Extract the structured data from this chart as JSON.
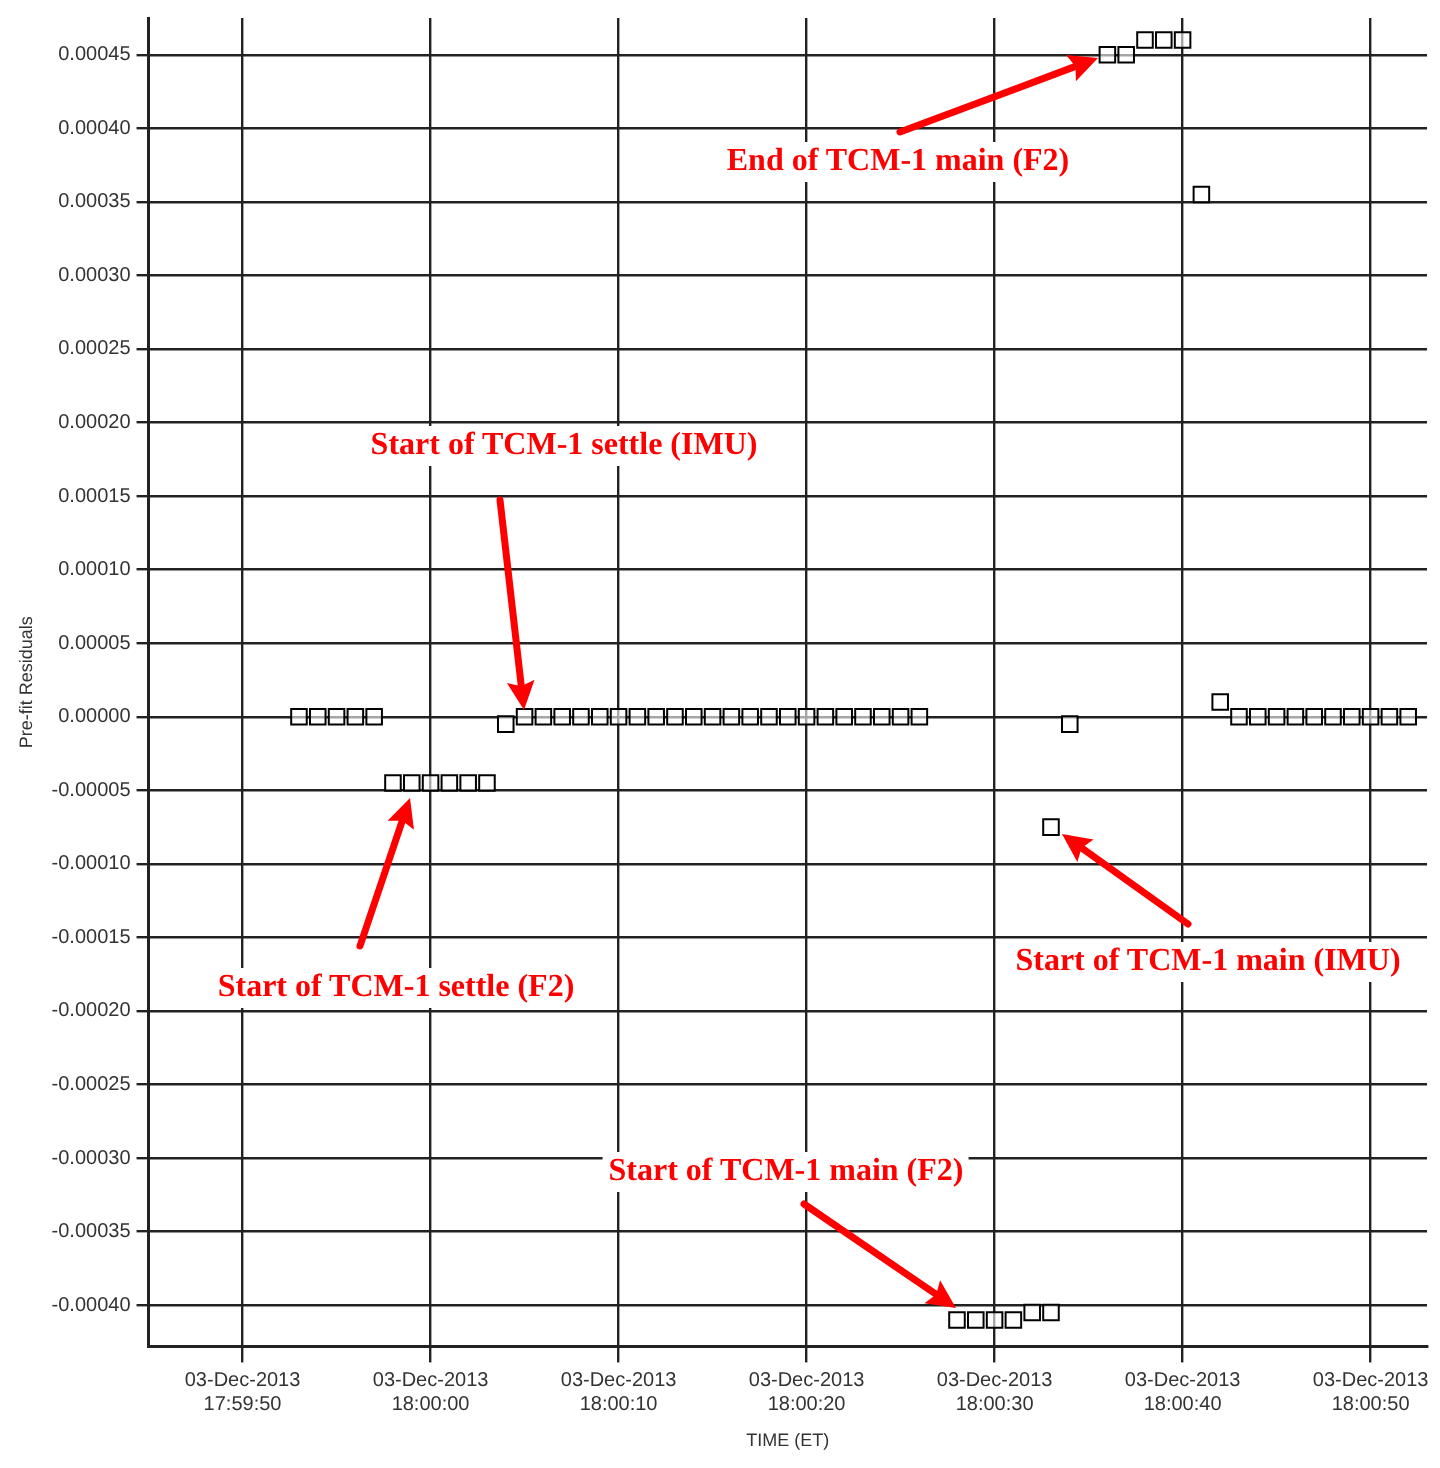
{
  "chart_data": {
    "type": "scatter",
    "xlabel": "TIME (ET)",
    "ylabel": "Pre-fit Residuals",
    "x": [
      "2013-12-03T17:59:53",
      "2013-12-03T17:59:54",
      "2013-12-03T17:59:55",
      "2013-12-03T17:59:56",
      "2013-12-03T17:59:57",
      "2013-12-03T17:59:58",
      "2013-12-03T17:59:59",
      "2013-12-03T18:00:00",
      "2013-12-03T18:00:01",
      "2013-12-03T18:00:02",
      "2013-12-03T18:00:03",
      "2013-12-03T18:00:04",
      "2013-12-03T18:00:05",
      "2013-12-03T18:00:06",
      "2013-12-03T18:00:07",
      "2013-12-03T18:00:08",
      "2013-12-03T18:00:09",
      "2013-12-03T18:00:10",
      "2013-12-03T18:00:11",
      "2013-12-03T18:00:12",
      "2013-12-03T18:00:13",
      "2013-12-03T18:00:14",
      "2013-12-03T18:00:15",
      "2013-12-03T18:00:16",
      "2013-12-03T18:00:17",
      "2013-12-03T18:00:18",
      "2013-12-03T18:00:19",
      "2013-12-03T18:00:20",
      "2013-12-03T18:00:21",
      "2013-12-03T18:00:22",
      "2013-12-03T18:00:23",
      "2013-12-03T18:00:24",
      "2013-12-03T18:00:25",
      "2013-12-03T18:00:26",
      "2013-12-03T18:00:28",
      "2013-12-03T18:00:29",
      "2013-12-03T18:00:30",
      "2013-12-03T18:00:31",
      "2013-12-03T18:00:32",
      "2013-12-03T18:00:33",
      "2013-12-03T18:00:33",
      "2013-12-03T18:00:34",
      "2013-12-03T18:00:36",
      "2013-12-03T18:00:37",
      "2013-12-03T18:00:38",
      "2013-12-03T18:00:39",
      "2013-12-03T18:00:40",
      "2013-12-03T18:00:41",
      "2013-12-03T18:00:42",
      "2013-12-03T18:00:43",
      "2013-12-03T18:00:44",
      "2013-12-03T18:00:45",
      "2013-12-03T18:00:46",
      "2013-12-03T18:00:47",
      "2013-12-03T18:00:48",
      "2013-12-03T18:00:49",
      "2013-12-03T18:00:50",
      "2013-12-03T18:00:51",
      "2013-12-03T18:00:52"
    ],
    "series": [
      {
        "color": "#000000",
        "values": [
          0,
          0,
          0,
          0,
          0,
          -4.5e-05,
          -4.5e-05,
          -4.5e-05,
          -4.5e-05,
          -4.5e-05,
          -4.5e-05,
          -5e-06,
          0,
          0,
          0,
          0,
          0,
          0,
          0,
          0,
          0,
          0,
          0,
          0,
          0,
          0,
          0,
          0,
          0,
          0,
          0,
          0,
          0,
          0,
          -0.00041,
          -0.00041,
          -0.00041,
          -0.00041,
          -0.000405,
          -0.000405,
          -7.5e-05,
          -5e-06,
          0.00045,
          0.00045,
          0.00046,
          0.00046,
          0.00046,
          0.000355,
          1e-05,
          0,
          0,
          0,
          0,
          0,
          0,
          0,
          0,
          0,
          0
        ]
      }
    ],
    "marker": "square",
    "grid": true,
    "legend": false,
    "xlim": [
      "2013-12-03T17:59:45",
      "2013-12-03T18:00:53"
    ],
    "xticks": [
      {
        "value": "2013-12-03T17:59:50",
        "label": "03-Dec-2013 17:59:50"
      },
      {
        "value": "2013-12-03T18:00:00",
        "label": "03-Dec-2013 18:00:00"
      },
      {
        "value": "2013-12-03T18:00:10",
        "label": "03-Dec-2013 18:00:10"
      },
      {
        "value": "2013-12-03T18:00:20",
        "label": "03-Dec-2013 18:00:20"
      },
      {
        "value": "2013-12-03T18:00:30",
        "label": "03-Dec-2013 18:00:30"
      },
      {
        "value": "2013-12-03T18:00:40",
        "label": "03-Dec-2013 18:00:40"
      },
      {
        "value": "2013-12-03T18:00:50",
        "label": "03-Dec-2013 18:00:50"
      }
    ],
    "ylim": [
      -0.000428,
      0.000475
    ],
    "yticks": [
      {
        "value": -0.0004,
        "label": "-0.00040"
      },
      {
        "value": -0.00035,
        "label": "-0.00035"
      },
      {
        "value": -0.0003,
        "label": "-0.00030"
      },
      {
        "value": -0.00025,
        "label": "-0.00025"
      },
      {
        "value": -0.0002,
        "label": "-0.00020"
      },
      {
        "value": -0.00015,
        "label": "-0.00015"
      },
      {
        "value": -0.0001,
        "label": "-0.00010"
      },
      {
        "value": -5e-05,
        "label": "-0.00005"
      },
      {
        "value": 0,
        "label": "0.00000"
      },
      {
        "value": 5e-05,
        "label": "0.00005"
      },
      {
        "value": 0.0001,
        "label": "0.00010"
      },
      {
        "value": 0.00015,
        "label": "0.00015"
      },
      {
        "value": 0.0002,
        "label": "0.00020"
      },
      {
        "value": 0.00025,
        "label": "0.00025"
      },
      {
        "value": 0.0003,
        "label": "0.00030"
      },
      {
        "value": 0.00035,
        "label": "0.00035"
      },
      {
        "value": 0.0004,
        "label": "0.00040"
      },
      {
        "value": 0.00045,
        "label": "0.00045"
      }
    ],
    "annotations": [
      "Start of TCM-1 settle (IMU)",
      "Start of TCM-1 settle (F2)",
      "End of TCM-1 main (F2)",
      "Start of TCM-1 main (IMU)",
      "Start of TCM-1 main (F2)"
    ]
  }
}
